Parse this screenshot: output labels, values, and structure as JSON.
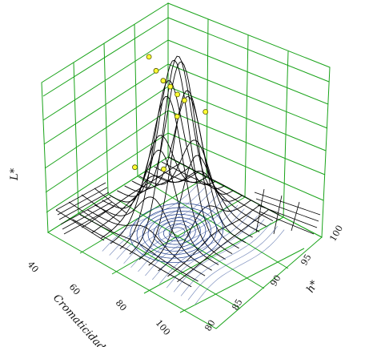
{
  "chart_data": {
    "type": "surface3d",
    "title": "",
    "axes": {
      "x": {
        "label": "Cromaticidad",
        "ticks": [
          40,
          60,
          80,
          100
        ],
        "range": [
          40,
          110
        ]
      },
      "y": {
        "label": "h*",
        "ticks": [
          80,
          85,
          90,
          95,
          100
        ],
        "range": [
          78,
          102
        ]
      },
      "z": {
        "label": "L*",
        "ticks": [],
        "range": [
          0,
          100
        ]
      }
    },
    "grid": true,
    "colors": {
      "grid": "#19a319",
      "mesh": "#000000",
      "contour": "#1a3a8c",
      "point_fill": "#ffff33",
      "point_stroke": "#555500",
      "floor_lines": "#000000"
    },
    "surface_peak": {
      "chroma": 70,
      "hue": 90
    },
    "points": [
      {
        "chroma": 62,
        "hue": 92,
        "L": 86
      },
      {
        "chroma": 63,
        "hue": 91,
        "L": 78
      },
      {
        "chroma": 64,
        "hue": 90,
        "L": 72
      },
      {
        "chroma": 65,
        "hue": 89,
        "L": 68
      },
      {
        "chroma": 66,
        "hue": 88,
        "L": 63
      },
      {
        "chroma": 67,
        "hue": 87,
        "L": 59
      },
      {
        "chroma": 68,
        "hue": 89,
        "L": 55
      },
      {
        "chroma": 70,
        "hue": 84,
        "L": 50
      },
      {
        "chroma": 58,
        "hue": 93,
        "L": 30
      },
      {
        "chroma": 60,
        "hue": 88,
        "L": 22
      }
    ]
  }
}
